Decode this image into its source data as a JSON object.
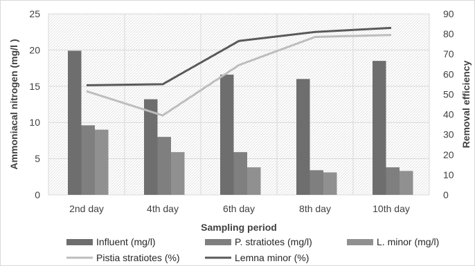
{
  "chart_data": {
    "type": "bar",
    "categories": [
      "2nd day",
      "4th day",
      "6th day",
      "8th day",
      "10th day"
    ],
    "xlabel": "Sampling period",
    "ylabel": "Ammoniacal nitrogen (mg/l )",
    "y2label": "Removal efficiency",
    "ylim": [
      0,
      25
    ],
    "yticks": [
      0,
      5,
      10,
      15,
      20,
      25
    ],
    "y2lim": [
      0,
      90
    ],
    "y2ticks": [
      0,
      10,
      20,
      30,
      40,
      50,
      60,
      70,
      80,
      90
    ],
    "grid": true,
    "legend_position": "bottom",
    "bar_series": [
      {
        "name": "Influent (mg/l)",
        "values": [
          19.9,
          13.2,
          16.6,
          16.0,
          18.5
        ],
        "color": "#6e6e6e"
      },
      {
        "name": "P. stratiotes (mg/l)",
        "values": [
          9.6,
          8.0,
          5.9,
          3.4,
          3.8
        ],
        "color": "#7f7f7f"
      },
      {
        "name": "L. minor (mg/l)",
        "values": [
          9.0,
          5.9,
          3.8,
          3.1,
          3.3
        ],
        "color": "#909090"
      }
    ],
    "line_series": [
      {
        "name": "Pistia stratiotes (%)",
        "values": [
          51.5,
          39.5,
          64.5,
          78.5,
          79.5
        ],
        "color": "#bdbdbd",
        "axis": "right"
      },
      {
        "name": "Lemna minor (%)",
        "values": [
          54.5,
          55.0,
          76.5,
          81.0,
          83.0
        ],
        "color": "#595959",
        "axis": "right"
      }
    ]
  }
}
